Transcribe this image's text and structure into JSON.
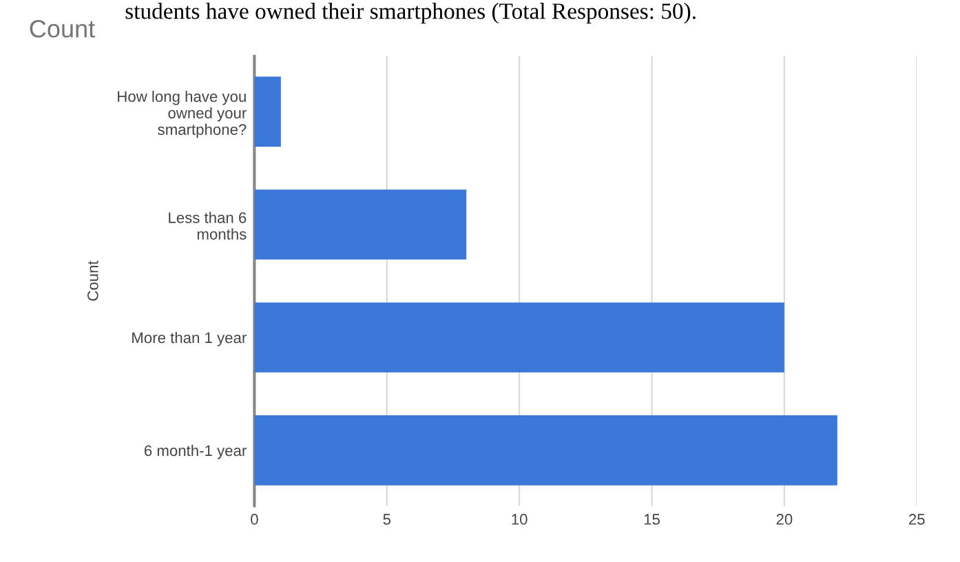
{
  "chart_data": {
    "type": "bar",
    "orientation": "horizontal",
    "title": "Count",
    "ylabel": "Count",
    "annotations": [
      "students have owned their smartphones (Total Responses: 50)."
    ],
    "categories": [
      "How long have you\nowned your\nsmartphone?",
      "Less than 6\nmonths",
      "More than 1 year",
      "6 month-1 year"
    ],
    "values": [
      1,
      8,
      20,
      22
    ],
    "color": "#3c78d8",
    "xlim": [
      0,
      25
    ],
    "xticks": [
      0,
      5,
      10,
      15,
      20,
      25
    ],
    "grid": "x"
  }
}
